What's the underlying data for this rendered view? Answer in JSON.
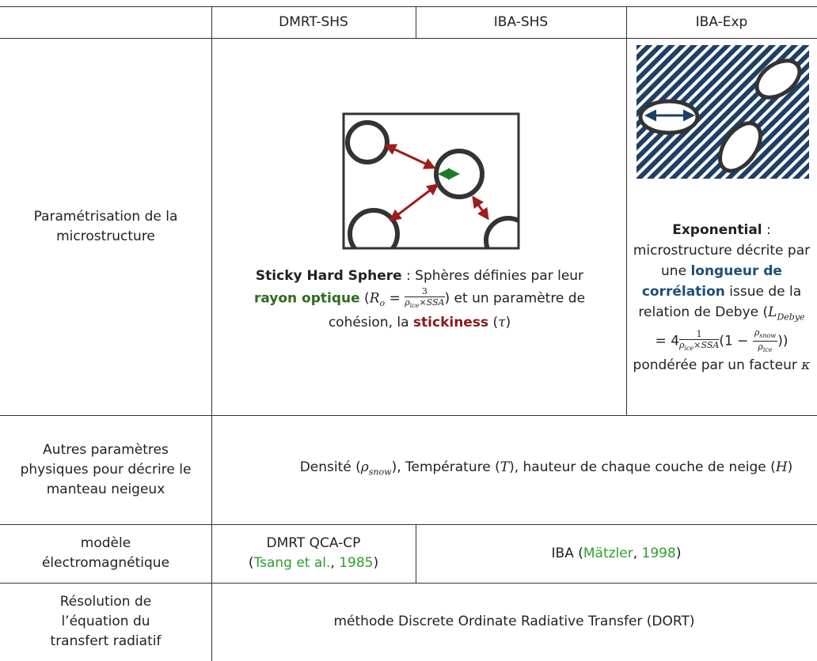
{
  "table": {
    "header": [
      "DMRT-SHS",
      "IBA-SHS",
      "IBA-Exp"
    ],
    "rows": [
      {
        "label": "Paramétrisation de la microstructure",
        "shs": {
          "term": "Sticky Hard Sphere",
          "t1": " : Sphères définies par leur ",
          "radius": "rayon optique",
          "t2": " (",
          "f_lhs": "R",
          "f_lhs_sub": "o",
          "f_eq": " = ",
          "f_num": "3",
          "f_den": "ρ",
          "f_den_sub": "ice",
          "f_den_rest": "×SSA",
          "t3": ") et un paramètre de cohésion, la ",
          "stickiness": "stickiness",
          "t4": " (",
          "tau": "τ",
          "t5": ")"
        },
        "exp": {
          "term": "Exponential",
          "t1": " : microstructure décrite par une ",
          "corr": "longueur de corrélation",
          "t2": " issue de la relation de Debye (",
          "L": "L",
          "L_sub": "Debye",
          "eq": " = ",
          "four": "4",
          "f1_num": "1",
          "f1_den": "ρ",
          "f1_den_sub": "ice",
          "f1_den_rest": "×SSA",
          "t3": "(1 − ",
          "f2_num": "ρ",
          "f2_num_sub": "snow",
          "f2_den": "ρ",
          "f2_den_sub": "ice",
          "t4": ")) pondérée par un facteur ",
          "kappa": "κ"
        }
      },
      {
        "label": "Autres paramètres physiques pour décrire le manteau neigeux",
        "text": {
          "t1": "Densité (",
          "rho": "ρ",
          "rho_sub": "snow",
          "t2": "), Température (",
          "T": "T",
          "t3": "), hauteur de chaque couche de neige (",
          "H": "H",
          "t4": ")"
        }
      },
      {
        "label": "modèle électromagnétique",
        "dmrt": {
          "t1": "DMRT QCA-CP",
          "t2": "(",
          "author": "Tsang et al.",
          "sep": ", ",
          "year": "1985",
          "t3": ")"
        },
        "iba": {
          "t1": "IBA (",
          "author": "Mätzler",
          "sep": ", ",
          "year": "1998",
          "t2": ")"
        }
      },
      {
        "label": "Résolution de l’équation du transfert radiatif",
        "text": "méthode Discrete Ordinate Radiative Transfer (DORT)"
      }
    ]
  }
}
